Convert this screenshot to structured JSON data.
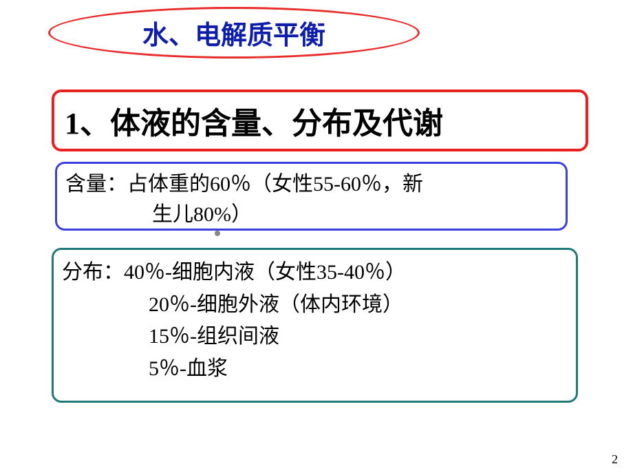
{
  "colors": {
    "title_border": "#e82c2c",
    "title_text": "#0f1ea8",
    "heading_border": "#ea1f1f",
    "heading_text": "#000000",
    "blue_border": "#3b3fdc",
    "teal_border": "#1f7a77",
    "body_text": "#000000",
    "dot_color": "#888888",
    "page_num_color": "#000000",
    "background": "#ffffff"
  },
  "fonts": {
    "title_size": 38,
    "heading_size": 44,
    "body_size": 30,
    "page_num_size": 18
  },
  "title": "水、电解质平衡",
  "heading": "1、体液的含量、分布及代谢",
  "box_blue": {
    "line1": "含量：占体重的60％（女性55-60％，新",
    "line2": "生儿80%）"
  },
  "box_teal": {
    "line1": "分布：40％-细胞内液（女性35-40％）",
    "line2": "20％-细胞外液（体内环境）",
    "line3": "15％-组织间液",
    "line4": "5％-血浆"
  },
  "page_number": "2"
}
